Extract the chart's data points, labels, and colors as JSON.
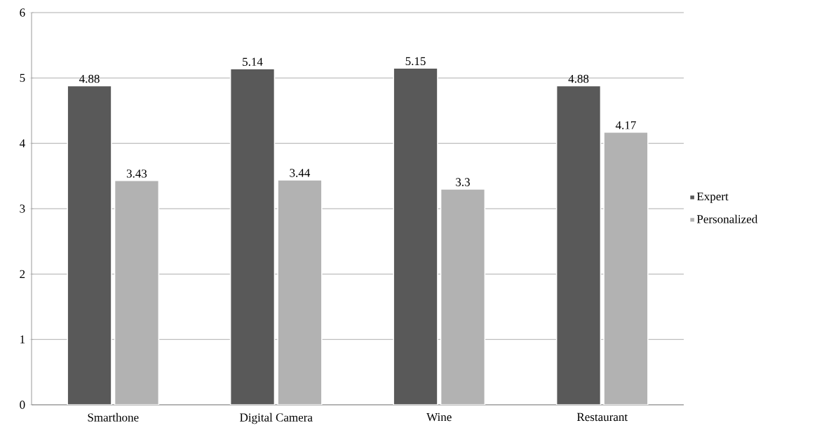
{
  "chart_data": {
    "type": "bar",
    "categories": [
      "Smarthone",
      "Digital Camera",
      "Wine",
      "Restaurant"
    ],
    "series": [
      {
        "name": "Expert",
        "color": "#595959",
        "values": [
          4.88,
          5.14,
          5.15,
          4.88
        ]
      },
      {
        "name": "Personalized",
        "color": "#b2b2b2",
        "values": [
          3.43,
          3.44,
          3.3,
          4.17
        ]
      }
    ],
    "ylim": [
      0,
      6
    ],
    "yticks": [
      0,
      1,
      2,
      3,
      4,
      5,
      6
    ],
    "grid": "y",
    "legend": "right",
    "data_labels": true
  }
}
